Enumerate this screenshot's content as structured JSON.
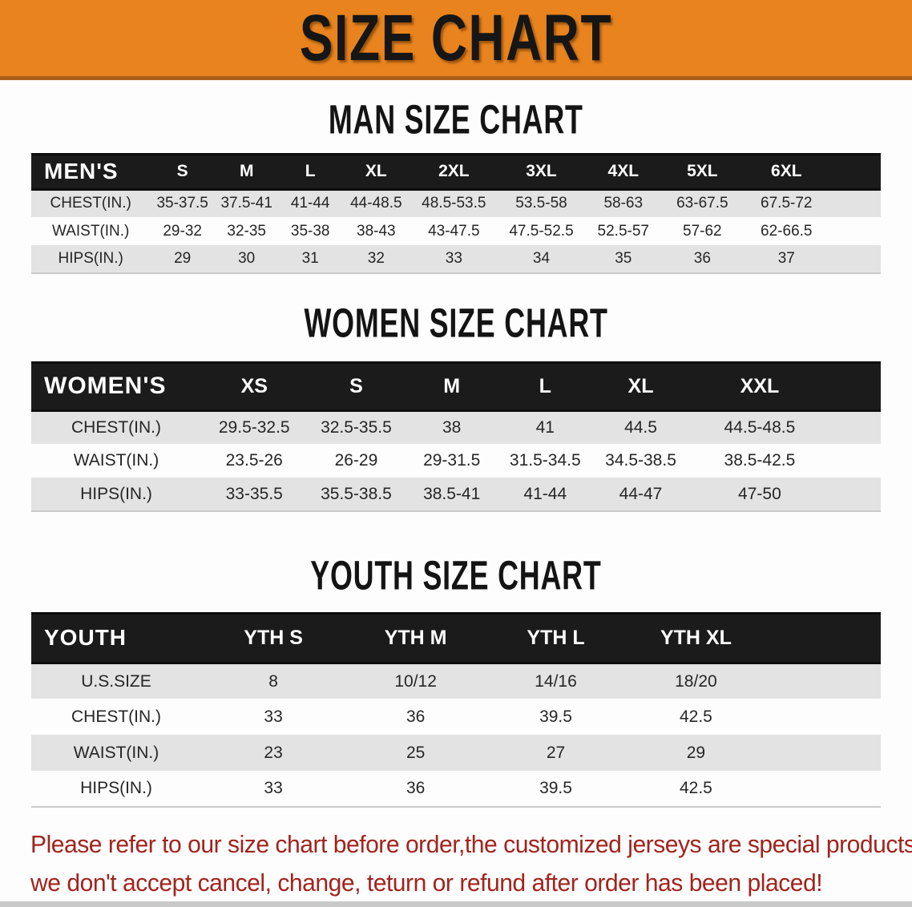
{
  "banner": {
    "title": "SIZE CHART"
  },
  "colors": {
    "banner_bg": "#E8831E",
    "banner_edge": "#AA5E17",
    "header_bar": "#1B1B1B",
    "row_gray": "#E3E3E3",
    "row_white": "#FDFDFD",
    "footer_red": "#A1241E"
  },
  "sections": [
    {
      "heading": "MAN SIZE CHART",
      "label": "MEN'S",
      "columns": [
        "S",
        "M",
        "L",
        "XL",
        "2XL",
        "3XL",
        "4XL",
        "5XL",
        "6XL"
      ],
      "rows": [
        {
          "label": "CHEST(IN.)",
          "values": [
            "35-37.5",
            "37.5-41",
            "41-44",
            "44-48.5",
            "48.5-53.5",
            "53.5-58",
            "58-63",
            "63-67.5",
            "67.5-72"
          ]
        },
        {
          "label": "WAIST(IN.)",
          "values": [
            "29-32",
            "32-35",
            "35-38",
            "38-43",
            "43-47.5",
            "47.5-52.5",
            "52.5-57",
            "57-62",
            "62-66.5"
          ]
        },
        {
          "label": "HIPS(IN.)",
          "values": [
            "29",
            "30",
            "31",
            "32",
            "33",
            "34",
            "35",
            "36",
            "37"
          ]
        }
      ]
    },
    {
      "heading": "WOMEN SIZE CHART",
      "label": "WOMEN'S",
      "columns": [
        "XS",
        "S",
        "M",
        "L",
        "XL",
        "XXL"
      ],
      "rows": [
        {
          "label": "CHEST(IN.)",
          "values": [
            "29.5-32.5",
            "32.5-35.5",
            "38",
            "41",
            "44.5",
            "44.5-48.5"
          ]
        },
        {
          "label": "WAIST(IN.)",
          "values": [
            "23.5-26",
            "26-29",
            "29-31.5",
            "31.5-34.5",
            "34.5-38.5",
            "38.5-42.5"
          ]
        },
        {
          "label": "HIPS(IN.)",
          "values": [
            "33-35.5",
            "35.5-38.5",
            "38.5-41",
            "41-44",
            "44-47",
            "47-50"
          ]
        }
      ]
    },
    {
      "heading": "YOUTH SIZE CHART",
      "label": "YOUTH",
      "columns": [
        "YTH S",
        "YTH M",
        "YTH L",
        "YTH XL"
      ],
      "rows": [
        {
          "label": "U.S.SIZE",
          "values": [
            "8",
            "10/12",
            "14/16",
            "18/20"
          ]
        },
        {
          "label": "CHEST(IN.)",
          "values": [
            "33",
            "36",
            "39.5",
            "42.5"
          ]
        },
        {
          "label": "WAIST(IN.)",
          "values": [
            "23",
            "25",
            "27",
            "29"
          ]
        },
        {
          "label": "HIPS(IN.)",
          "values": [
            "33",
            "36",
            "39.5",
            "42.5"
          ]
        }
      ]
    }
  ],
  "footer": {
    "line1": "Please refer to our size chart before order,the customized jerseys are special products,",
    "line2": "we don't accept cancel, change, teturn or refund after order has been placed!"
  }
}
